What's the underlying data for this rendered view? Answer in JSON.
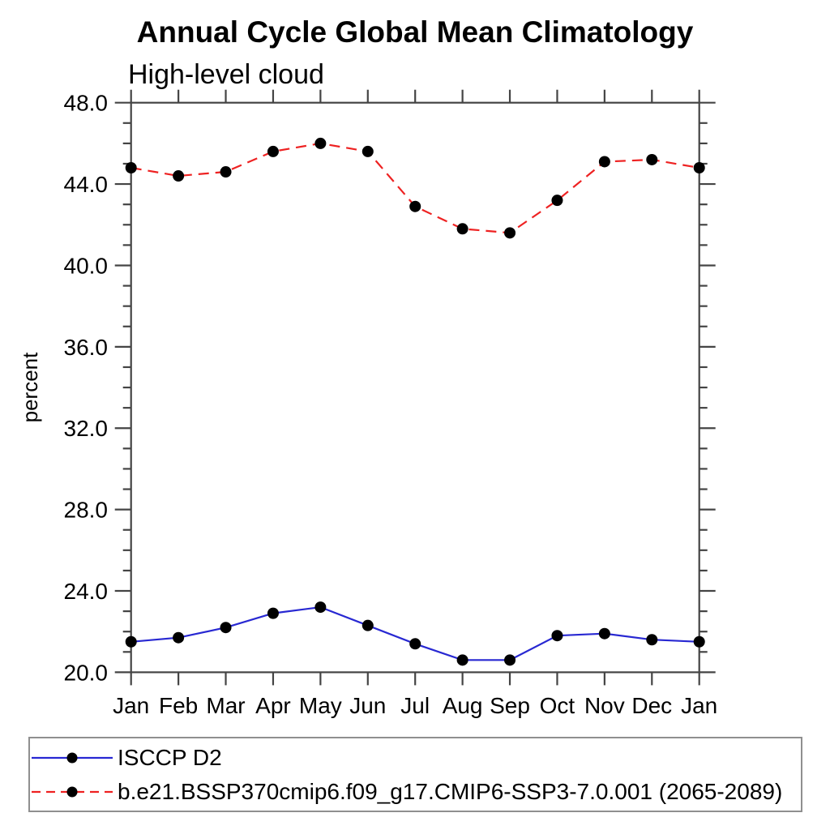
{
  "chart_data": {
    "type": "line",
    "title": "Annual Cycle Global Mean Climatology",
    "subtitle": "High-level cloud",
    "ylabel": "percent",
    "xlabel": "",
    "categories": [
      "Jan",
      "Feb",
      "Mar",
      "Apr",
      "May",
      "Jun",
      "Jul",
      "Aug",
      "Sep",
      "Oct",
      "Nov",
      "Dec",
      "Jan"
    ],
    "ylim": [
      20.0,
      48.0
    ],
    "ytick_major_interval": 4.0,
    "ytick_minor_interval": 1.0,
    "ytick_labels": [
      "20.0",
      "24.0",
      "28.0",
      "32.0",
      "36.0",
      "40.0",
      "44.0",
      "48.0"
    ],
    "grid": false,
    "legend_position": "bottom",
    "axis_color": "#444444",
    "series": [
      {
        "name": "ISCCP D2",
        "color": "#2828D2",
        "line_style": "solid",
        "marker": "circle",
        "marker_color": "#000000",
        "values": [
          21.5,
          21.7,
          22.2,
          22.9,
          23.2,
          22.3,
          21.4,
          20.6,
          20.6,
          21.8,
          21.9,
          21.6,
          21.5
        ]
      },
      {
        "name": "b.e21.BSSP370cmip6.f09_g17.CMIP6-SSP3-7.0.001 (2065-2089)",
        "color": "#EE2222",
        "line_style": "dashed",
        "marker": "circle",
        "marker_color": "#000000",
        "values": [
          44.8,
          44.4,
          44.6,
          45.6,
          46.0,
          45.6,
          42.9,
          41.8,
          41.6,
          43.2,
          45.1,
          45.2,
          44.8
        ]
      }
    ]
  }
}
